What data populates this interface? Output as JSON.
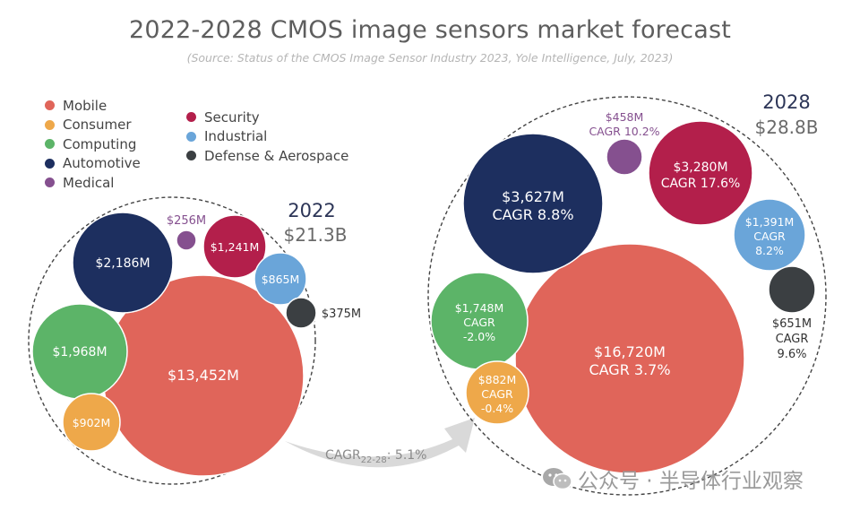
{
  "chart_data": {
    "type": "bubble",
    "title": "2022-2028 CMOS image sensors market forecast",
    "subtitle": "(Source:  Status of the CMOS Image Sensor Industry 2023, Yole Intelligence, July, 2023)",
    "legend": [
      {
        "name": "Mobile",
        "color": "#e0655a"
      },
      {
        "name": "Consumer",
        "color": "#eea84a"
      },
      {
        "name": "Computing",
        "color": "#5cb468"
      },
      {
        "name": "Automotive",
        "color": "#1d2f5f"
      },
      {
        "name": "Medical",
        "color": "#85508f"
      },
      {
        "name": "Security",
        "color": "#b31f4b"
      },
      {
        "name": "Industrial",
        "color": "#6aa5d9"
      },
      {
        "name": "Defense & Aerospace",
        "color": "#3b3f42"
      }
    ],
    "groups": [
      {
        "year": "2022",
        "total": "$21.3B",
        "segments": [
          {
            "name": "Mobile",
            "value": 13452,
            "label": "$13,452M"
          },
          {
            "name": "Automotive",
            "value": 2186,
            "label": "$2,186M"
          },
          {
            "name": "Computing",
            "value": 1968,
            "label": "$1,968M"
          },
          {
            "name": "Security",
            "value": 1241,
            "label": "$1,241M"
          },
          {
            "name": "Consumer",
            "value": 902,
            "label": "$902M"
          },
          {
            "name": "Industrial",
            "value": 865,
            "label": "$865M"
          },
          {
            "name": "Defense & Aerospace",
            "value": 375,
            "label": "$375M"
          },
          {
            "name": "Medical",
            "value": 256,
            "label": "$256M"
          }
        ]
      },
      {
        "year": "2028",
        "total": "$28.8B",
        "segments": [
          {
            "name": "Mobile",
            "value": 16720,
            "label": "$16,720M",
            "cagr": "CAGR 3.7%"
          },
          {
            "name": "Automotive",
            "value": 3627,
            "label": "$3,627M",
            "cagr": "CAGR 8.8%"
          },
          {
            "name": "Security",
            "value": 3280,
            "label": "$3,280M",
            "cagr": "CAGR 17.6%"
          },
          {
            "name": "Computing",
            "value": 1748,
            "label": "$1,748M",
            "cagr": "CAGR -2.0%"
          },
          {
            "name": "Industrial",
            "value": 1391,
            "label": "$1,391M",
            "cagr": "CAGR 8.2%"
          },
          {
            "name": "Consumer",
            "value": 882,
            "label": "$882M",
            "cagr": "CAGR -0.4%"
          },
          {
            "name": "Defense & Aerospace",
            "value": 651,
            "label": "$651M",
            "cagr": "CAGR 9.6%"
          },
          {
            "name": "Medical",
            "value": 458,
            "label": "$458M",
            "cagr": "CAGR 10.2%"
          }
        ]
      }
    ],
    "arrow_label": {
      "prefix": "CAGR",
      "subscript": "22-28",
      "suffix": ": 5.1%"
    },
    "units": "USD millions"
  },
  "watermark": {
    "text": "公众号 · 半导体行业观察"
  }
}
